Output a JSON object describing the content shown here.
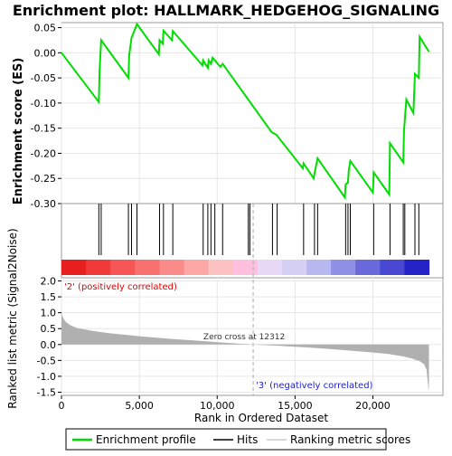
{
  "chart_data": {
    "type": "line",
    "title": "Enrichment plot: HALLMARK_HEDGEHOG_SIGNALING",
    "xlabel": "Rank in Ordered Dataset",
    "x_ticks": [
      0,
      5000,
      10000,
      15000,
      20000
    ],
    "x_tick_labels": [
      "0",
      "5,000",
      "10,000",
      "15,000",
      "20,000"
    ],
    "xlim": [
      0,
      24500
    ],
    "n_genes": 23600,
    "es_panel": {
      "ylabel": "Enrichment score (ES)",
      "ylim": [
        -0.3,
        0.06
      ],
      "y_ticks": [
        0.05,
        0.0,
        -0.05,
        -0.1,
        -0.15,
        -0.2,
        -0.25,
        -0.3
      ],
      "y_tick_labels": [
        "0.05",
        "0.00",
        "-0.05",
        "-0.10",
        "-0.15",
        "-0.20",
        "-0.25",
        "-0.30"
      ],
      "series": [
        {
          "name": "Enrichment profile",
          "color": "#00dd00",
          "x": [
            0,
            2400,
            2450,
            2550,
            4300,
            4350,
            4500,
            4850,
            6250,
            6300,
            6500,
            6550,
            7100,
            7150,
            9050,
            9100,
            9400,
            9450,
            9600,
            9700,
            9850,
            10200,
            10350,
            13500,
            13800,
            15500,
            15550,
            16200,
            16250,
            16450,
            18200,
            18250,
            18400,
            18450,
            18550,
            20000,
            20050,
            21050,
            21100,
            21950,
            22000,
            22150,
            22600,
            22700,
            22950,
            23000,
            23600
          ],
          "y": [
            0.0,
            -0.098,
            -0.035,
            0.025,
            -0.05,
            -0.005,
            0.03,
            0.057,
            -0.003,
            0.025,
            0.018,
            0.044,
            0.025,
            0.043,
            -0.025,
            -0.015,
            -0.03,
            -0.015,
            -0.022,
            -0.01,
            -0.015,
            -0.028,
            -0.022,
            -0.158,
            -0.163,
            -0.23,
            -0.22,
            -0.25,
            -0.24,
            -0.21,
            -0.288,
            -0.262,
            -0.258,
            -0.235,
            -0.215,
            -0.278,
            -0.238,
            -0.282,
            -0.18,
            -0.218,
            -0.155,
            -0.093,
            -0.12,
            -0.042,
            -0.05,
            0.032,
            0.002
          ]
        }
      ]
    },
    "hits": {
      "name": "Hits",
      "color": "#000000",
      "positions": [
        2400,
        2550,
        4300,
        4500,
        4850,
        6300,
        6550,
        7150,
        9100,
        9400,
        9600,
        9850,
        10350,
        12000,
        12100,
        13550,
        13850,
        15550,
        16250,
        16450,
        18250,
        18400,
        18550,
        20050,
        21100,
        21950,
        22050,
        22700,
        22950
      ]
    },
    "rank_metric_panel": {
      "ylabel": "Ranked list metric (Signal2Noise)",
      "ylim": [
        -1.6,
        2.1
      ],
      "y_ticks": [
        2.0,
        1.5,
        1.0,
        0.5,
        0.0,
        -0.5,
        -1.0,
        -1.5
      ],
      "y_tick_labels": [
        "2.0",
        "1.5",
        "1.0",
        "0.5",
        "0.0",
        "-0.5",
        "-1.0",
        "-1.5"
      ],
      "series": [
        {
          "name": "Ranking metric scores",
          "color": "#b0b0b0",
          "x": [
            0,
            50,
            150,
            300,
            600,
            1000,
            2000,
            3000,
            5000,
            7000,
            9000,
            11000,
            12312,
            14000,
            16000,
            18000,
            20000,
            21000,
            22000,
            22500,
            23000,
            23300,
            23450,
            23550,
            23600
          ],
          "y": [
            1.02,
            0.9,
            0.8,
            0.7,
            0.6,
            0.52,
            0.43,
            0.36,
            0.26,
            0.18,
            0.11,
            0.04,
            0.0,
            -0.04,
            -0.1,
            -0.17,
            -0.25,
            -0.3,
            -0.38,
            -0.44,
            -0.52,
            -0.62,
            -0.8,
            -1.3,
            -1.45
          ]
        }
      ],
      "zero_cross_label": "Zero cross at 12312",
      "zero_cross_rank": 12312,
      "positive_label": "'2' (positively correlated)",
      "negative_label": "'3' (negatively correlated)"
    },
    "color_bar": {
      "colors": [
        "#e81f1f",
        "#f03a3a",
        "#f55555",
        "#f97070",
        "#fb8b8b",
        "#fca6a6",
        "#fdc1c1",
        "#ffc0e0",
        "#e8d8f8",
        "#d6d0f5",
        "#b8b8f0",
        "#8f8fe6",
        "#6a6adc",
        "#4848d2",
        "#2323c8"
      ]
    },
    "legend": {
      "position": "bottom",
      "items": [
        {
          "name": "Enrichment profile",
          "color": "#00dd00"
        },
        {
          "name": "Hits",
          "color": "#000000"
        },
        {
          "name": "Ranking metric scores",
          "color": "#b0b0b0"
        }
      ]
    }
  }
}
